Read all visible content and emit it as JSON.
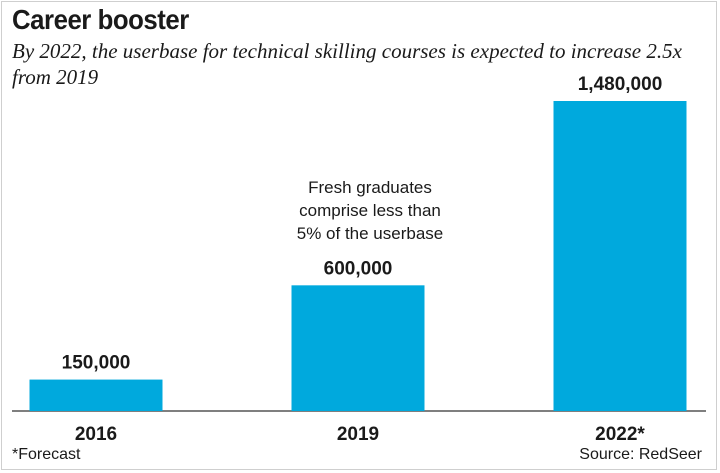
{
  "chart_data": {
    "type": "bar",
    "title": "Career booster",
    "subtitle": "By 2022, the userbase for technical skilling courses is expected to increase 2.5x from 2019",
    "categories": [
      "2016",
      "2019",
      "2022*"
    ],
    "values": [
      150000,
      600000,
      1480000
    ],
    "value_labels": [
      "150,000",
      "600,000",
      "1,480,000"
    ],
    "annotation": [
      "Fresh graduates",
      "comprise less than",
      "5% of the userbase"
    ],
    "bar_color": "#00a9dd",
    "ylim": [
      0,
      1480000
    ],
    "grid": false,
    "legend": "none",
    "footnote": "*Forecast",
    "source": "Source: RedSeer"
  }
}
